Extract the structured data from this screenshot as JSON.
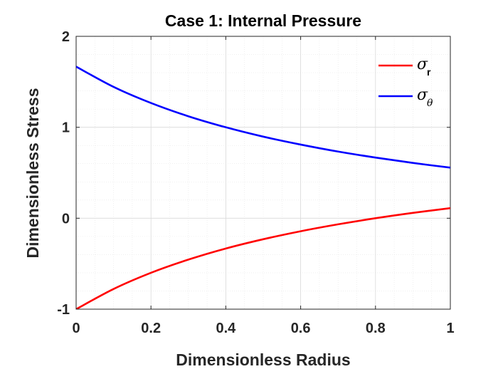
{
  "chart_data": {
    "type": "line",
    "title": "Case 1: Internal Pressure",
    "xlabel": "Dimensionless Radius",
    "ylabel": "Dimensionless Stress",
    "xlim": [
      0,
      1
    ],
    "ylim": [
      -1,
      2
    ],
    "xticks": [
      "0",
      "0.2",
      "0.4",
      "0.6",
      "0.8",
      "1"
    ],
    "yticks": [
      "-1",
      "0",
      "1",
      "2"
    ],
    "grid": true,
    "minor_grid": true,
    "legend_position": "top-right",
    "x": [
      0,
      0.1,
      0.2,
      0.3,
      0.4,
      0.5,
      0.6,
      0.7,
      0.8,
      0.9,
      1.0
    ],
    "series": [
      {
        "name": "σ",
        "subscript": "r",
        "color": "#ff0000",
        "values": [
          -1.0,
          -0.778,
          -0.6,
          -0.455,
          -0.333,
          -0.231,
          -0.143,
          -0.067,
          0.0,
          0.059,
          0.111
        ]
      },
      {
        "name": "σ",
        "subscript": "θ",
        "color": "#0000ff",
        "values": [
          1.667,
          1.444,
          1.267,
          1.121,
          1.0,
          0.897,
          0.81,
          0.733,
          0.667,
          0.608,
          0.556
        ]
      }
    ]
  }
}
